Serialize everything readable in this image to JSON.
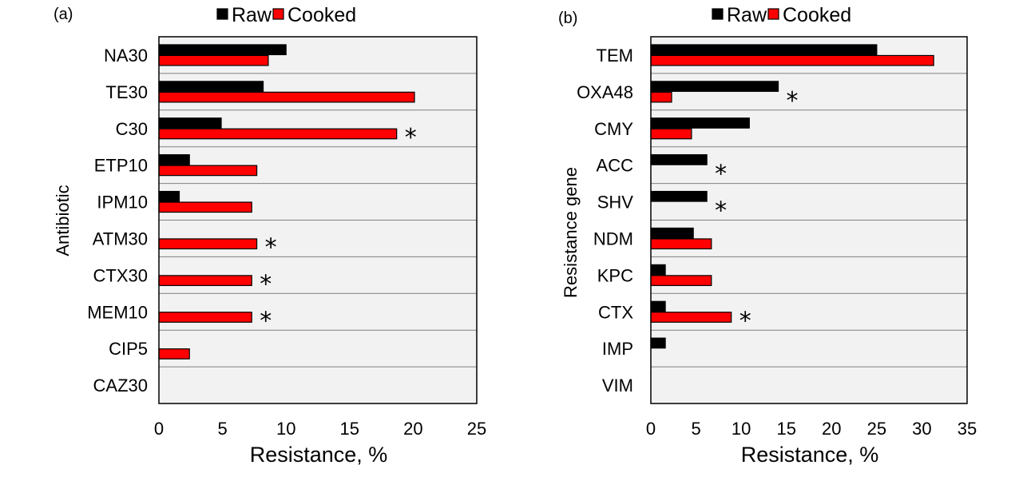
{
  "chart_data": [
    {
      "type": "bar",
      "orientation": "horizontal",
      "panel_label": "(a)",
      "categories": [
        "NA30",
        "TE30",
        "C30",
        "ETP10",
        "IPM10",
        "ATM30",
        "CTX30",
        "MEM10",
        "CIP5",
        "CAZ30"
      ],
      "series": [
        {
          "name": "Raw",
          "color": "#000000",
          "values": [
            10,
            8.2,
            4.9,
            2.4,
            1.6,
            0,
            0,
            0,
            0,
            0
          ]
        },
        {
          "name": "Cooked",
          "color": "#ff0000",
          "values": [
            8.6,
            20.1,
            18.7,
            7.7,
            7.3,
            7.7,
            7.3,
            7.3,
            2.4,
            0
          ]
        }
      ],
      "annotations": [
        {
          "category": "C30",
          "text": "*"
        },
        {
          "category": "ATM30",
          "text": "*"
        },
        {
          "category": "CTX30",
          "text": "*"
        },
        {
          "category": "MEM10",
          "text": "*"
        }
      ],
      "xlabel": "Resistance, %",
      "ylabel": "Antibiotic",
      "xlim": [
        0,
        25
      ],
      "xticks": [
        0,
        5,
        10,
        15,
        20,
        25
      ],
      "legend_position": "top"
    },
    {
      "type": "bar",
      "orientation": "horizontal",
      "panel_label": "(b)",
      "categories": [
        "TEM",
        "OXA48",
        "CMY",
        "ACC",
        "SHV",
        "NDM",
        "KPC",
        "CTX",
        "IMP",
        "VIM"
      ],
      "series": [
        {
          "name": "Raw",
          "color": "#000000",
          "values": [
            25,
            14.1,
            10.9,
            6.2,
            6.2,
            4.7,
            1.6,
            1.6,
            1.6,
            0
          ]
        },
        {
          "name": "Cooked",
          "color": "#ff0000",
          "values": [
            31.3,
            2.3,
            4.5,
            0,
            0,
            6.7,
            6.7,
            8.9,
            0,
            0
          ]
        }
      ],
      "annotations": [
        {
          "category": "OXA48",
          "text": "*"
        },
        {
          "category": "ACC",
          "text": "*"
        },
        {
          "category": "SHV",
          "text": "*"
        },
        {
          "category": "CTX",
          "text": "*"
        }
      ],
      "xlabel": "Resistance, %",
      "ylabel": "Resistance gene",
      "xlim": [
        0,
        35
      ],
      "xticks": [
        0,
        5,
        10,
        15,
        20,
        25,
        30,
        35
      ],
      "legend_position": "top"
    }
  ],
  "colors": {
    "plot_background": "#f2f2f2",
    "gridline": "#808080"
  }
}
